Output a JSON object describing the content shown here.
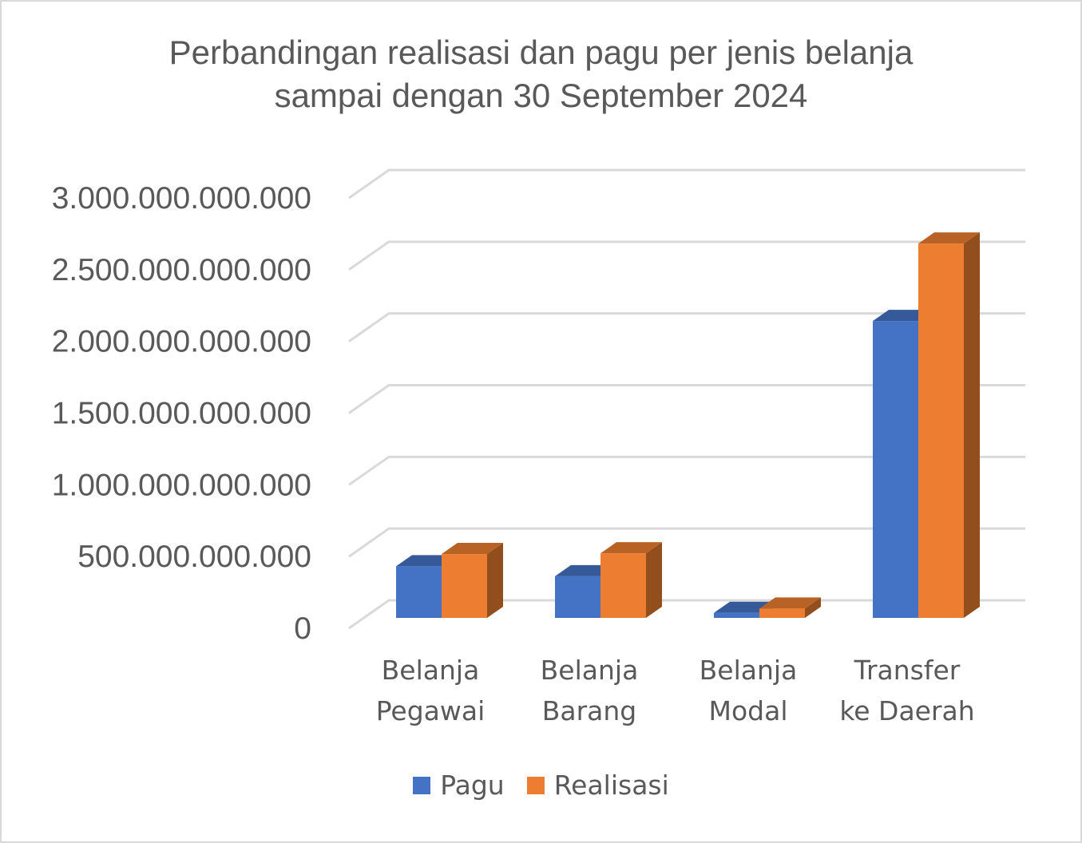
{
  "chart_data": {
    "type": "bar",
    "title": "Perbandingan realisasi dan pagu per jenis belanja sampai dengan 30 September 2024",
    "title_lines": [
      "Perbandingan realisasi dan pagu per jenis belanja",
      "sampai dengan 30 September 2024"
    ],
    "categories": [
      [
        "Belanja",
        "Pegawai"
      ],
      [
        "Belanja",
        "Barang"
      ],
      [
        "Belanja",
        "Modal"
      ],
      [
        "Transfer",
        "ke Daerah"
      ]
    ],
    "series": [
      {
        "name": "Pagu",
        "color": "#4472c4",
        "values": [
          360000000000,
          290000000000,
          35000000000,
          2070000000000
        ]
      },
      {
        "name": "Realisasi",
        "color": "#ed7d31",
        "values": [
          445000000000,
          450000000000,
          65000000000,
          2610000000000
        ]
      }
    ],
    "ylim": [
      0,
      3000000000000
    ],
    "yticks": [
      0,
      500000000000,
      1000000000000,
      1500000000000,
      2000000000000,
      2500000000000,
      3000000000000
    ],
    "ytick_labels": [
      "0",
      "500.000.000.000",
      "1.000.000.000.000",
      "1.500.000.000.000",
      "2.000.000.000.000",
      "2.500.000.000.000",
      "3.000.000.000.000"
    ],
    "grid": true,
    "legend_position": "bottom",
    "style": "3d-clustered-column"
  }
}
